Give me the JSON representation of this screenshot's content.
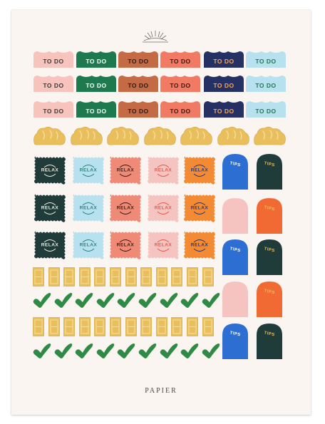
{
  "brand": {
    "name": "PAPIER"
  },
  "palette": {
    "pink": "#f7c3bd",
    "green": "#1e7a4e",
    "rust": "#c46a45",
    "coral": "#f07a63",
    "navy": "#253163",
    "aqua": "#b7e1ee",
    "gold": "#e8bf5c",
    "dark_teal": "#1f3b3a",
    "salmon": "#ef8a76",
    "blush": "#f6c4c0",
    "orange": "#f28b34",
    "blue": "#2d6ed2",
    "flame": "#f16a33",
    "check_green": "#2f8a46",
    "cream": "#fbf5f1"
  },
  "todo_label": "TO DO",
  "todo_colors": [
    "pink",
    "green",
    "rust",
    "coral",
    "navy",
    "aqua"
  ],
  "todo_text_colors": [
    "#3a3a3a",
    "#ffffff",
    "#2f1a10",
    "#3a1a12",
    "#f3a76a",
    "#1e7a4e"
  ],
  "relax_label": "RELAX",
  "relax_rows": [
    [
      "dark_teal",
      "aqua",
      "salmon",
      "blush",
      "orange"
    ],
    [
      "dark_teal",
      "aqua",
      "salmon",
      "blush",
      "orange"
    ],
    [
      "dark_teal",
      "aqua",
      "salmon",
      "blush",
      "orange"
    ]
  ],
  "tips_label": "TIPS",
  "tips_rows": [
    [
      "blue",
      "dark_teal"
    ],
    [
      "blush",
      "flame"
    ],
    [
      "blue",
      "dark_teal"
    ],
    [
      "blush",
      "flame"
    ],
    [
      "blue",
      "dark_teal"
    ]
  ],
  "tips_show_label": [
    [
      true,
      true
    ],
    [
      false,
      true
    ],
    [
      true,
      true
    ],
    [
      false,
      true
    ],
    [
      true,
      true
    ]
  ]
}
